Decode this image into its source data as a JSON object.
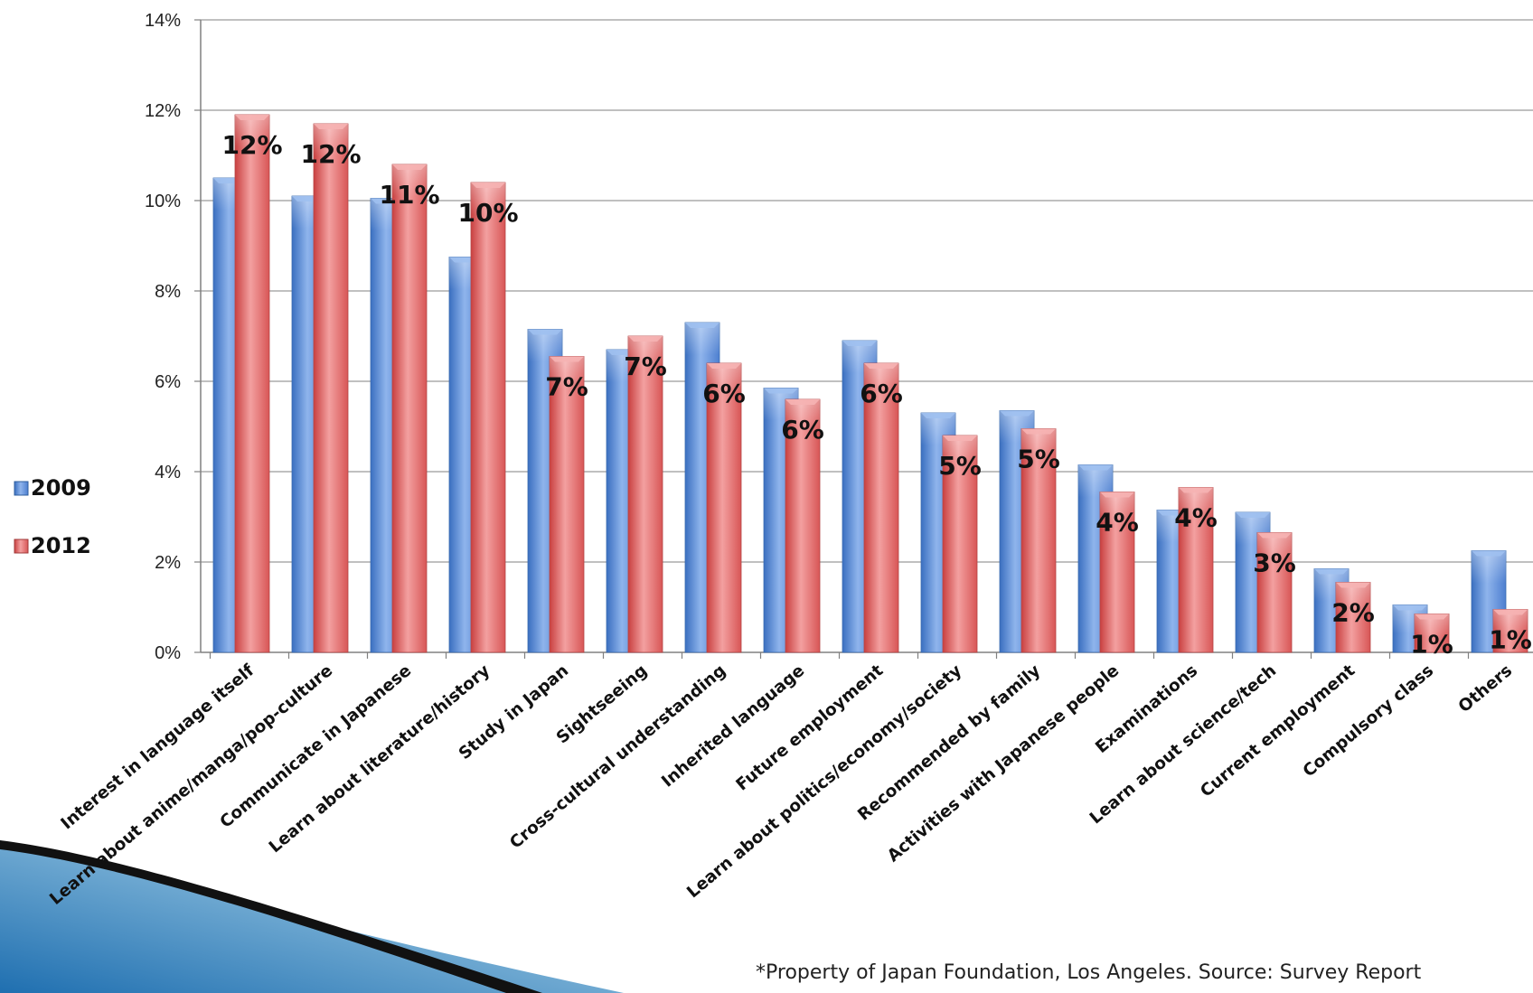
{
  "chart_data": {
    "type": "bar",
    "title": "",
    "xlabel": "",
    "ylabel": "",
    "ylim": [
      0,
      14
    ],
    "y_tick_labels": [
      "0%",
      "2%",
      "4%",
      "6%",
      "8%",
      "10%",
      "12%",
      "14%"
    ],
    "grid": "horizontal",
    "legend_position": "left",
    "categories": [
      "Interest in language itself",
      "Learn about anime/manga/pop-culture",
      "Communicate in Japanese",
      "Learn about literature/history",
      "Study in Japan",
      "Sightseeing",
      "Cross-cultural understanding",
      "Inherited language",
      "Future employment",
      "Learn about politics/economy/society",
      "Recommended by family",
      "Activities with Japanese people",
      "Examinations",
      "Learn about science/tech",
      "Current employment",
      "Compulsory class",
      "Others"
    ],
    "series": [
      {
        "name": "2009",
        "color": "#4f81bd",
        "values": [
          10.5,
          10.1,
          10.05,
          8.75,
          7.15,
          6.7,
          7.3,
          5.85,
          6.9,
          5.3,
          5.35,
          4.15,
          3.15,
          3.1,
          1.85,
          1.05,
          2.25
        ]
      },
      {
        "name": "2012",
        "color": "#c0504d",
        "values": [
          11.9,
          11.7,
          10.8,
          10.4,
          6.55,
          7.0,
          6.4,
          5.6,
          6.4,
          4.8,
          4.95,
          3.55,
          3.65,
          2.65,
          1.55,
          0.85,
          0.95
        ],
        "data_labels": [
          "12%",
          "12%",
          "11%",
          "10%",
          "7%",
          "7%",
          "6%",
          "6%",
          "6%",
          "5%",
          "5%",
          "4%",
          "4%",
          "3%",
          "2%",
          "1%",
          "1%"
        ]
      }
    ],
    "footnote": "*Property of Japan Foundation, Los Angeles. Source: Survey Report"
  }
}
